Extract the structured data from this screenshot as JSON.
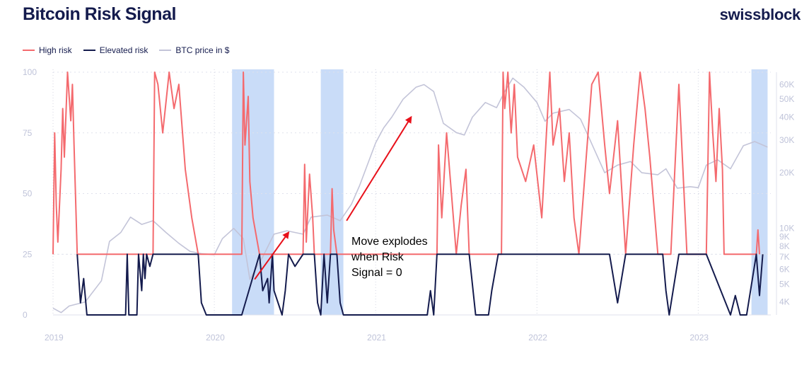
{
  "header": {
    "title": "Bitcoin Risk Signal",
    "brand": "swissblock"
  },
  "colors": {
    "high_risk": "#f46a6e",
    "elevated_risk": "#141b4d",
    "btc_price": "#c3c4d8",
    "highlight": "#c9dcf8",
    "arrow": "#e8111b",
    "axis_text": "#bfc3d9"
  },
  "legend": [
    {
      "label": "High risk",
      "color": "#f46a6e"
    },
    {
      "label": "Elevated risk",
      "color": "#141b4d"
    },
    {
      "label": "BTC price in $",
      "color": "#c3c4d8"
    }
  ],
  "annotation": {
    "lines": [
      "Move explodes",
      "when Risk",
      "Signal = 0"
    ]
  },
  "chart_data": {
    "type": "line",
    "title": "Bitcoin Risk Signal",
    "x_range": [
      2019.0,
      2023.45
    ],
    "x_ticks": [
      {
        "value": 2019.0,
        "label": "2019"
      },
      {
        "value": 2020.0,
        "label": "2020"
      },
      {
        "value": 2021.0,
        "label": "2021"
      },
      {
        "value": 2022.0,
        "label": "2022"
      },
      {
        "value": 2023.0,
        "label": "2023"
      }
    ],
    "y_left": {
      "range": [
        0,
        100
      ],
      "ticks": [
        0,
        25,
        50,
        75,
        100
      ],
      "threshold": 25
    },
    "y_right": {
      "scale": "log",
      "ticks": [
        {
          "value": 4000,
          "label": "4K"
        },
        {
          "value": 5000,
          "label": "5K"
        },
        {
          "value": 6000,
          "label": "6K"
        },
        {
          "value": 7000,
          "label": "7K"
        },
        {
          "value": 8000,
          "label": "8K"
        },
        {
          "value": 9000,
          "label": "9K"
        },
        {
          "value": 10000,
          "label": "10K"
        },
        {
          "value": 20000,
          "label": "20K"
        },
        {
          "value": 30000,
          "label": "30K"
        },
        {
          "value": 40000,
          "label": "40K"
        },
        {
          "value": 50000,
          "label": "50K"
        },
        {
          "value": 60000,
          "label": "60K"
        }
      ]
    },
    "highlighted_periods": [
      [
        2020.11,
        2020.37
      ],
      [
        2020.66,
        2020.8
      ],
      [
        2023.33,
        2023.43
      ]
    ],
    "grid": {
      "horizontal": true,
      "vertical_dotted": true
    },
    "legend_position": "top-left",
    "series": [
      {
        "name": "BTC price in $",
        "axis": "right",
        "x": [
          2019.0,
          2019.05,
          2019.1,
          2019.2,
          2019.3,
          2019.35,
          2019.42,
          2019.48,
          2019.55,
          2019.62,
          2019.7,
          2019.78,
          2019.85,
          2019.92,
          2020.0,
          2020.05,
          2020.12,
          2020.18,
          2020.22,
          2020.3,
          2020.37,
          2020.45,
          2020.55,
          2020.6,
          2020.7,
          2020.78,
          2020.85,
          2020.9,
          2021.0,
          2021.05,
          2021.1,
          2021.17,
          2021.25,
          2021.3,
          2021.36,
          2021.42,
          2021.5,
          2021.55,
          2021.6,
          2021.68,
          2021.75,
          2021.8,
          2021.85,
          2021.92,
          2022.0,
          2022.05,
          2022.1,
          2022.2,
          2022.27,
          2022.33,
          2022.42,
          2022.5,
          2022.58,
          2022.65,
          2022.75,
          2022.8,
          2022.87,
          2022.95,
          2023.0,
          2023.05,
          2023.12,
          2023.2,
          2023.28,
          2023.35,
          2023.43
        ],
        "y": [
          3700,
          3500,
          3800,
          4000,
          5200,
          8500,
          9500,
          11500,
          10500,
          11000,
          9500,
          8300,
          7500,
          7300,
          7200,
          8800,
          10000,
          8800,
          5300,
          7000,
          9300,
          9700,
          9300,
          11500,
          11800,
          11000,
          13500,
          17000,
          29000,
          35000,
          40000,
          50000,
          58000,
          60000,
          55000,
          37000,
          33000,
          32000,
          40000,
          48000,
          45000,
          55000,
          65000,
          58000,
          48000,
          38000,
          42000,
          44000,
          39000,
          30000,
          20000,
          22000,
          23000,
          20000,
          19500,
          21000,
          16500,
          16800,
          16600,
          22000,
          23500,
          21000,
          28000,
          29500,
          27500
        ]
      },
      {
        "name": "High risk",
        "axis": "left",
        "x": [
          2019.0,
          2019.01,
          2019.02,
          2019.03,
          2019.05,
          2019.06,
          2019.07,
          2019.09,
          2019.11,
          2019.12,
          2019.13,
          2019.15,
          2019.62,
          2019.63,
          2019.65,
          2019.68,
          2019.72,
          2019.75,
          2019.78,
          2019.82,
          2019.86,
          2019.9,
          2020.17,
          2020.18,
          2020.19,
          2020.21,
          2020.22,
          2020.24,
          2020.28,
          2020.55,
          2020.56,
          2020.57,
          2020.59,
          2020.61,
          2020.62,
          2020.72,
          2020.73,
          2020.74,
          2020.76,
          2021.38,
          2021.39,
          2021.41,
          2021.44,
          2021.47,
          2021.5,
          2021.53,
          2021.56,
          2021.58,
          2021.78,
          2021.79,
          2021.8,
          2021.82,
          2021.84,
          2021.86,
          2021.88,
          2021.93,
          2021.98,
          2022.03,
          2022.08,
          2022.1,
          2022.14,
          2022.17,
          2022.2,
          2022.23,
          2022.26,
          2022.3,
          2022.34,
          2022.38,
          2022.42,
          2022.45,
          2022.5,
          2022.55,
          2022.6,
          2022.64,
          2022.67,
          2022.7,
          2022.75,
          2022.83,
          2022.88,
          2022.93,
          2023.05,
          2023.07,
          2023.09,
          2023.11,
          2023.13,
          2023.15,
          2023.16,
          2023.2,
          2023.36,
          2023.37,
          2023.38
        ],
        "y": [
          25,
          75,
          45,
          30,
          60,
          85,
          65,
          100,
          80,
          95,
          70,
          25,
          25,
          100,
          95,
          75,
          100,
          85,
          95,
          60,
          40,
          25,
          25,
          100,
          70,
          90,
          55,
          40,
          25,
          25,
          62,
          30,
          58,
          40,
          25,
          25,
          52,
          35,
          25,
          25,
          70,
          40,
          75,
          50,
          25,
          45,
          60,
          25,
          25,
          100,
          85,
          100,
          75,
          95,
          65,
          55,
          70,
          40,
          100,
          70,
          85,
          55,
          75,
          40,
          25,
          60,
          95,
          100,
          70,
          50,
          80,
          25,
          70,
          100,
          85,
          65,
          25,
          25,
          95,
          25,
          25,
          100,
          75,
          55,
          85,
          60,
          25,
          25,
          25,
          35,
          25
        ]
      },
      {
        "name": "Elevated risk",
        "axis": "left",
        "x": [
          2019.15,
          2019.17,
          2019.19,
          2019.21,
          2019.22,
          2019.3,
          2019.45,
          2019.46,
          2019.47,
          2019.48,
          2019.52,
          2019.53,
          2019.55,
          2019.56,
          2019.57,
          2019.58,
          2019.6,
          2019.62,
          2019.9,
          2019.92,
          2019.95,
          2020.17,
          2020.28,
          2020.3,
          2020.33,
          2020.34,
          2020.36,
          2020.37,
          2020.42,
          2020.44,
          2020.46,
          2020.5,
          2020.55,
          2020.62,
          2020.64,
          2020.66,
          2020.68,
          2020.7,
          2020.72,
          2020.76,
          2020.78,
          2020.8,
          2021.32,
          2021.34,
          2021.36,
          2021.38,
          2021.58,
          2021.62,
          2021.7,
          2021.72,
          2021.76,
          2021.78,
          2022.45,
          2022.5,
          2022.55,
          2022.78,
          2022.8,
          2022.82,
          2022.88,
          2022.93,
          2023.05,
          2023.2,
          2023.23,
          2023.26,
          2023.3,
          2023.36,
          2023.38,
          2023.4
        ],
        "y": [
          25,
          5,
          15,
          0,
          0,
          0,
          0,
          25,
          0,
          0,
          0,
          25,
          10,
          25,
          15,
          25,
          20,
          25,
          25,
          5,
          0,
          0,
          25,
          10,
          15,
          5,
          25,
          10,
          0,
          10,
          25,
          20,
          25,
          25,
          5,
          0,
          25,
          5,
          25,
          25,
          5,
          0,
          0,
          10,
          0,
          25,
          25,
          0,
          0,
          10,
          25,
          25,
          25,
          5,
          25,
          25,
          10,
          0,
          25,
          25,
          25,
          0,
          8,
          0,
          0,
          25,
          8,
          25
        ]
      }
    ]
  }
}
